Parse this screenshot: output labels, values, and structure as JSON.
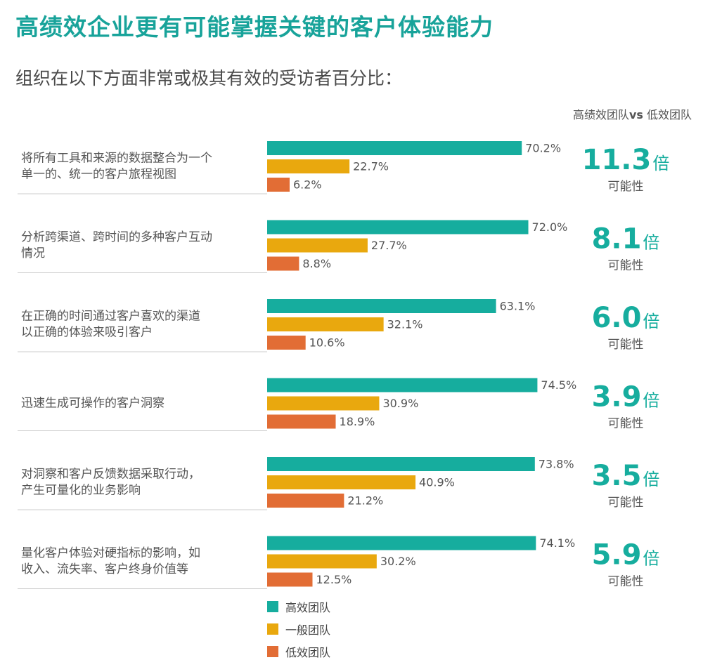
{
  "header": {
    "title": "高绩效企业更有可能掌握关键的客户体验能力",
    "subtitle": "组织在以下方面非常或极其有效的受访者百分比：",
    "ratio_header_left": "高绩效团队",
    "ratio_header_vs": "vs",
    "ratio_header_right": " 低效团队"
  },
  "colors": {
    "high": "#16ad9e",
    "mid": "#e9a80e",
    "low": "#e26d35",
    "ratio": "#16ad9e",
    "divider": "#cccccc"
  },
  "chart_data": {
    "type": "bar",
    "orientation": "horizontal",
    "xlim": [
      0,
      100
    ],
    "series": [
      {
        "name": "高效团队",
        "values": [
          70.2,
          72.0,
          63.1,
          74.5,
          73.8,
          74.1
        ],
        "labels": [
          "70.2%",
          "72.0%",
          "63.1%",
          "74.5%",
          "73.8%",
          "74.1%"
        ]
      },
      {
        "name": "一般团队",
        "values": [
          22.7,
          27.7,
          32.1,
          30.9,
          40.9,
          30.2
        ],
        "labels": [
          "22.7%",
          "27.7%",
          "32.1%",
          "30.9%",
          "40.9%",
          "30.2%"
        ]
      },
      {
        "name": "低效团队",
        "values": [
          6.2,
          8.8,
          10.6,
          18.9,
          21.2,
          12.5
        ],
        "labels": [
          "6.2%",
          "8.8%",
          "10.6%",
          "18.9%",
          "21.2%",
          "12.5%"
        ]
      }
    ],
    "categories": [
      {
        "lines": [
          "将所有工具和来源的数据整合为一个",
          "单一的、统一的客户旅程视图"
        ],
        "ratio": "11.3",
        "ratio_unit": "倍",
        "ratio_caption": "可能性"
      },
      {
        "lines": [
          "分析跨渠道、跨时间的多种客户互动",
          "情况"
        ],
        "ratio": "8.1",
        "ratio_unit": "倍",
        "ratio_caption": "可能性"
      },
      {
        "lines": [
          "在正确的时间通过客户喜欢的渠道",
          "以正确的体验来吸引客户"
        ],
        "ratio": "6.0",
        "ratio_unit": "倍",
        "ratio_caption": "可能性"
      },
      {
        "lines": [
          "迅速生成可操作的客户洞察"
        ],
        "ratio": "3.9",
        "ratio_unit": "倍",
        "ratio_caption": "可能性"
      },
      {
        "lines": [
          "对洞察和客户反馈数据采取行动，",
          "产生可量化的业务影响"
        ],
        "ratio": "3.5",
        "ratio_unit": "倍",
        "ratio_caption": "可能性"
      },
      {
        "lines": [
          "量化客户体验对硬指标的影响，如",
          "收入、流失率、客户终身价值等"
        ],
        "ratio": "5.9",
        "ratio_unit": "倍",
        "ratio_caption": "可能性"
      }
    ],
    "legend": [
      "高效团队",
      "一般团队",
      "低效团队"
    ],
    "legend_position": "bottom"
  }
}
